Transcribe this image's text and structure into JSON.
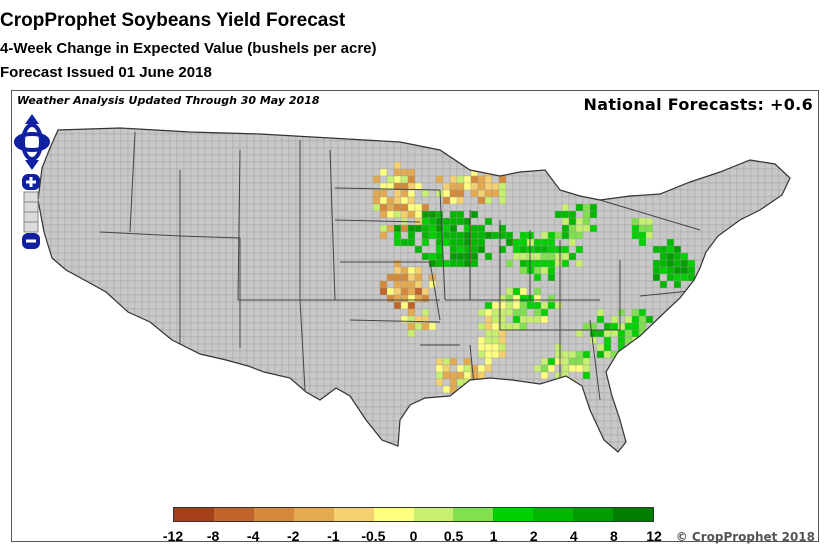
{
  "title": "CropProphet Soybeans Yield Forecast",
  "subtitle": "4-Week Change in Expected Value (bushels per acre)",
  "issued": "Forecast Issued 01 June 2018",
  "weather_note": "Weather Analysis Updated Through 30 May 2018",
  "national": "National Forecasts: +0.6",
  "copyright": "© CropProphet 2018",
  "legend": {
    "labels": [
      "-12",
      "-8",
      "-4",
      "-2",
      "-1",
      "-0.5",
      "0",
      "0.5",
      "1",
      "2",
      "4",
      "8",
      "12"
    ],
    "colors": [
      "#a6401a",
      "#c0642c",
      "#d48a3a",
      "#e4aa50",
      "#f5d070",
      "#ffff80",
      "#c8f070",
      "#80e050",
      "#00d000",
      "#00b800",
      "#009c00",
      "#007e00"
    ]
  },
  "colors": {
    "land": "#c8c8c8",
    "state_border": "#444444",
    "county_border": "#9a9a9a",
    "nav": "#1020a0"
  },
  "icons": {
    "pan": "pan-arrows-icon",
    "zoom_in": "zoom-in-icon",
    "zoom_out": "zoom-out-icon"
  }
}
